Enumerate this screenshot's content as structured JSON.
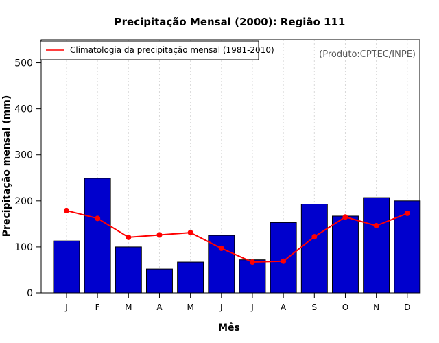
{
  "chart_data": {
    "type": "bar",
    "title": "Precipitação Mensal (2000): Região 111",
    "xlabel": "Mês",
    "ylabel": "Precipitação mensal (mm)",
    "categories": [
      "J",
      "F",
      "M",
      "A",
      "M",
      "J",
      "J",
      "A",
      "S",
      "O",
      "N",
      "D"
    ],
    "ylim": [
      0,
      550
    ],
    "yticks": [
      0,
      100,
      200,
      300,
      400,
      500
    ],
    "grid": "vertical dotted",
    "series": [
      {
        "name": "Precipitação mensal (2000)",
        "kind": "bar",
        "color": "#0000CD",
        "values": [
          113,
          249,
          100,
          52,
          67,
          125,
          72,
          153,
          193,
          167,
          207,
          200
        ]
      },
      {
        "name": "Climatologia da precipitação mensal (1981-2010)",
        "kind": "line",
        "color": "#FF0000",
        "values": [
          179,
          162,
          121,
          126,
          131,
          97,
          67,
          69,
          122,
          165,
          146,
          173
        ]
      }
    ],
    "legend": {
      "position": "top-left",
      "label": "Climatologia da precipitação mensal (1981-2010)"
    },
    "credit": "(Produto:CPTEC/INPE)"
  }
}
